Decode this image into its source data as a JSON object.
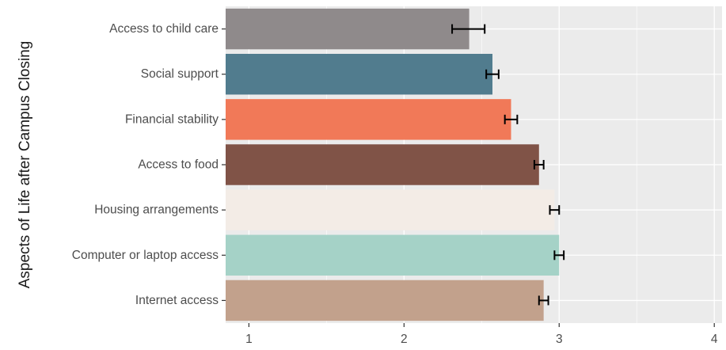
{
  "chart_data": {
    "type": "bar",
    "orientation": "horizontal",
    "title": "",
    "xlabel": "",
    "ylabel": "Aspects of Life after Campus Closing",
    "xlim": [
      0.85,
      4.05
    ],
    "xticks": [
      1,
      2,
      3,
      4
    ],
    "xtick_labels": [
      "1",
      "2",
      "3",
      "4"
    ],
    "grid": true,
    "legend": "none",
    "categories": [
      "Access to child care",
      "Social support",
      "Financial stability",
      "Access to food",
      "Housing arrangements",
      "Computer or laptop access",
      "Internet access"
    ],
    "values": [
      2.42,
      2.57,
      2.69,
      2.87,
      2.97,
      3.0,
      2.9
    ],
    "errors": [
      [
        2.31,
        2.52
      ],
      [
        2.53,
        2.61
      ],
      [
        2.65,
        2.73
      ],
      [
        2.84,
        2.9
      ],
      [
        2.94,
        3.0
      ],
      [
        2.97,
        3.03
      ],
      [
        2.87,
        2.93
      ]
    ],
    "colors": [
      "#8f8a8b",
      "#517c8e",
      "#f17958",
      "#805347",
      "#f3ece6",
      "#a5d2c7",
      "#c2a18c"
    ],
    "panel_background": "#ebebeb",
    "grid_color": "#ffffff"
  }
}
